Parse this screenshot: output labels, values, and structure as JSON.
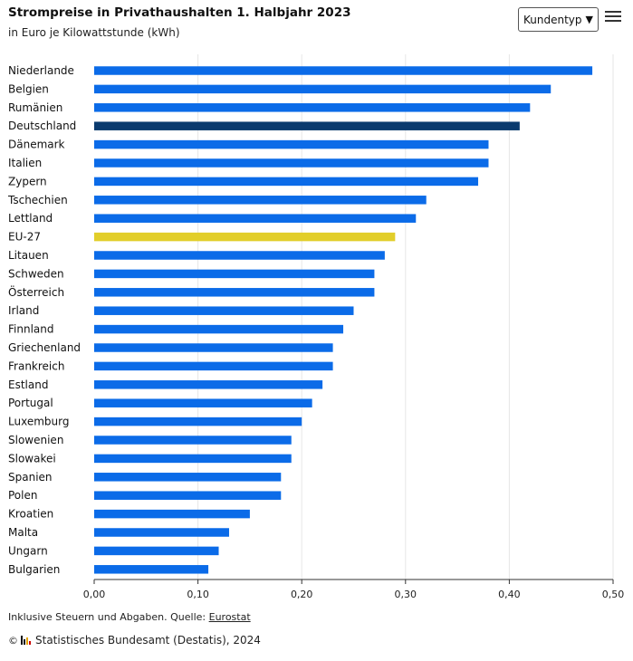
{
  "header": {
    "title": "Strompreise in Privathaushalten 1. Halbjahr 2023",
    "subtitle": "in Euro je Kilowattstunde (kWh)"
  },
  "controls": {
    "dropdown_label": "Kundentyp",
    "dropdown_arrow": "▼",
    "menu_icon": "hamburger-menu-icon"
  },
  "chart_data": {
    "type": "bar",
    "orientation": "horizontal",
    "title": "Strompreise in Privathaushalten 1. Halbjahr 2023",
    "subtitle": "in Euro je Kilowattstunde (kWh)",
    "categories": [
      "Niederlande",
      "Belgien",
      "Rumänien",
      "Deutschland",
      "Dänemark",
      "Italien",
      "Zypern",
      "Tschechien",
      "Lettland",
      "EU-27",
      "Litauen",
      "Schweden",
      "Österreich",
      "Irland",
      "Finnland",
      "Griechenland",
      "Frankreich",
      "Estland",
      "Portugal",
      "Luxemburg",
      "Slowenien",
      "Slowakei",
      "Spanien",
      "Polen",
      "Kroatien",
      "Malta",
      "Ungarn",
      "Bulgarien"
    ],
    "values": [
      0.48,
      0.44,
      0.42,
      0.41,
      0.38,
      0.38,
      0.37,
      0.32,
      0.31,
      0.29,
      0.28,
      0.27,
      0.27,
      0.25,
      0.24,
      0.23,
      0.23,
      0.22,
      0.21,
      0.2,
      0.19,
      0.19,
      0.18,
      0.18,
      0.15,
      0.13,
      0.12,
      0.11
    ],
    "xlim": [
      0,
      0.5
    ],
    "x_ticks": [
      "0,00",
      "0,10",
      "0,20",
      "0,30",
      "0,40",
      "0,50"
    ],
    "grid": "vertical",
    "colors": {
      "default": "#0b6be8",
      "highlight_germany": "#0a3a6e",
      "highlight_eu": "#e2ce2a",
      "grid": "#e6e6e6",
      "axis": "#333333"
    },
    "highlights": {
      "Deutschland": "highlight_germany",
      "EU-27": "highlight_eu"
    }
  },
  "footer": {
    "note_prefix": "Inklusive Steuern und Abgaben. Quelle: ",
    "source_link": "Eurostat",
    "copyright_symbol": "©",
    "credit": "Statistisches Bundesamt (Destatis), 2024"
  }
}
